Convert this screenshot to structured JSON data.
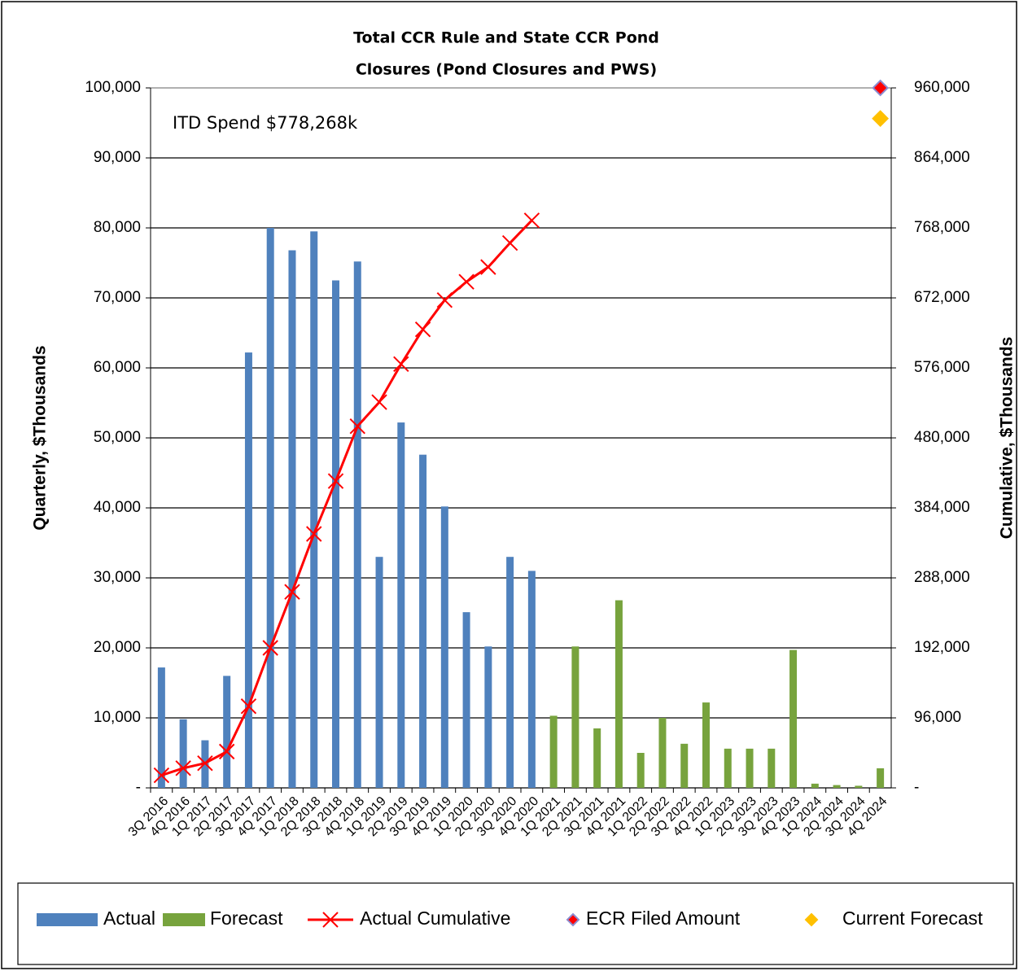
{
  "chart_data": {
    "type": "bar",
    "title": [
      "Total CCR Rule and State CCR Pond",
      "Closures (Pond Closures and PWS)"
    ],
    "annotation": "ITD Spend   $778,268k",
    "ylabel": "Quarterly, $Thousands",
    "y2label": "Cumulative, $Thousands",
    "categories": [
      "3Q 2016",
      "4Q 2016",
      "1Q 2017",
      "2Q 2017",
      "3Q 2017",
      "4Q 2017",
      "1Q 2018",
      "2Q 2018",
      "3Q 2018",
      "4Q 2018",
      "1Q 2019",
      "2Q 2019",
      "3Q 2019",
      "4Q 2019",
      "1Q 2020",
      "2Q 2020",
      "3Q 2020",
      "4Q 2020",
      "1Q 2021",
      "2Q 2021",
      "3Q 2021",
      "4Q 2021",
      "1Q 2022",
      "2Q 2022",
      "3Q 2022",
      "4Q 2022",
      "1Q 2023",
      "2Q 2023",
      "3Q 2023",
      "4Q 2023",
      "1Q 2024",
      "2Q 2024",
      "3Q 2024",
      "4Q 2024"
    ],
    "series": [
      {
        "name": "Actual",
        "type": "bar",
        "color": "#4f81bd",
        "values": [
          17200,
          9800,
          6800,
          16000,
          62200,
          80000,
          76800,
          79500,
          72500,
          75200,
          33000,
          52200,
          47600,
          40200,
          25100,
          20200,
          33000,
          31000,
          null,
          null,
          null,
          null,
          null,
          null,
          null,
          null,
          null,
          null,
          null,
          null,
          null,
          null,
          null,
          null
        ]
      },
      {
        "name": "Forecast",
        "type": "bar",
        "color": "#77a33d",
        "values": [
          null,
          null,
          null,
          null,
          null,
          null,
          null,
          null,
          null,
          null,
          null,
          null,
          null,
          null,
          null,
          null,
          null,
          null,
          10300,
          20200,
          8500,
          26800,
          5000,
          10000,
          6300,
          12200,
          5600,
          5600,
          5600,
          19700,
          600,
          400,
          300,
          2800
        ]
      },
      {
        "name": "Actual Cumulative",
        "type": "line",
        "axis": "y2",
        "color": "#ff0000",
        "values": [
          17200,
          27000,
          33800,
          49800,
          112000,
          192000,
          268800,
          348300,
          420800,
          496000,
          529000,
          581200,
          628800,
          669000,
          694100,
          714300,
          747300,
          778300,
          null,
          null,
          null,
          null,
          null,
          null,
          null,
          null,
          null,
          null,
          null,
          null,
          null,
          null,
          null,
          null
        ]
      },
      {
        "name": "ECR Filed Amount",
        "type": "diamond",
        "axis": "y2",
        "color": "#ff0000",
        "values": [
          null,
          null,
          null,
          null,
          null,
          null,
          null,
          null,
          null,
          null,
          null,
          null,
          null,
          null,
          null,
          null,
          null,
          null,
          null,
          null,
          null,
          null,
          null,
          null,
          null,
          null,
          null,
          null,
          null,
          null,
          null,
          null,
          null,
          960000
        ]
      },
      {
        "name": "Current Forecast",
        "type": "diamond",
        "axis": "y2",
        "color": "#ffc000",
        "values": [
          null,
          null,
          null,
          null,
          null,
          null,
          null,
          null,
          null,
          null,
          null,
          null,
          null,
          null,
          null,
          null,
          null,
          null,
          null,
          null,
          null,
          null,
          null,
          null,
          null,
          null,
          null,
          null,
          null,
          null,
          null,
          null,
          null,
          918000
        ]
      }
    ],
    "ylim": [
      0,
      100000
    ],
    "yticks": [
      {
        "value": 0,
        "label": "-"
      },
      {
        "value": 10000,
        "label": "10,000"
      },
      {
        "value": 20000,
        "label": "20,000"
      },
      {
        "value": 30000,
        "label": "30,000"
      },
      {
        "value": 40000,
        "label": "40,000"
      },
      {
        "value": 50000,
        "label": "50,000"
      },
      {
        "value": 60000,
        "label": "60,000"
      },
      {
        "value": 70000,
        "label": "70,000"
      },
      {
        "value": 80000,
        "label": "80,000"
      },
      {
        "value": 90000,
        "label": "90,000"
      },
      {
        "value": 100000,
        "label": "100,000"
      }
    ],
    "y2lim": [
      0,
      960000
    ],
    "y2ticks": [
      {
        "value": 0,
        "label": "-"
      },
      {
        "value": 96000,
        "label": "96,000"
      },
      {
        "value": 192000,
        "label": "192,000"
      },
      {
        "value": 288000,
        "label": "288,000"
      },
      {
        "value": 384000,
        "label": "384,000"
      },
      {
        "value": 480000,
        "label": "480,000"
      },
      {
        "value": 576000,
        "label": "576,000"
      },
      {
        "value": 672000,
        "label": "672,000"
      },
      {
        "value": 768000,
        "label": "768,000"
      },
      {
        "value": 864000,
        "label": "864,000"
      },
      {
        "value": 960000,
        "label": "960,000"
      }
    ],
    "grid": true,
    "legend": "bottom"
  }
}
